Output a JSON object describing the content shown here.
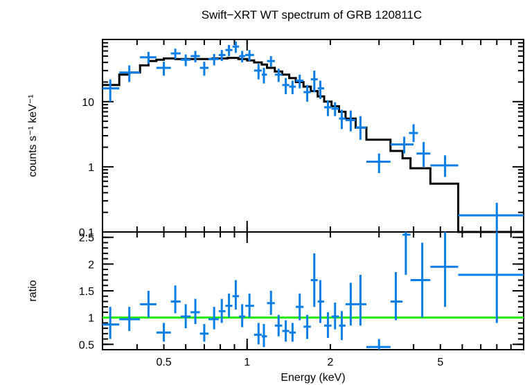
{
  "chart_data": [
    {
      "type": "scatter",
      "title": "Swift−XRT WT spectrum of GRB 120811C",
      "xlabel": "",
      "ylabel": "counts s⁻¹ keV⁻¹",
      "xscale": "log",
      "yscale": "log",
      "xlim": [
        0.3,
        10
      ],
      "ylim": [
        0.1,
        90
      ],
      "y_ticks": [
        "0.1",
        "1",
        "10"
      ],
      "colors": {
        "data": "#0a7de6",
        "model": "#000000"
      },
      "series": [
        {
          "kind": "data",
          "points": [
            {
              "x": 0.32,
              "xlo": 0.3,
              "xhi": 0.345,
              "y": 16,
              "ylo": 10,
              "yhi": 22
            },
            {
              "x": 0.375,
              "xlo": 0.345,
              "xhi": 0.41,
              "y": 28,
              "ylo": 20,
              "yhi": 36
            },
            {
              "x": 0.44,
              "xlo": 0.41,
              "xhi": 0.47,
              "y": 48,
              "ylo": 38,
              "yhi": 58
            },
            {
              "x": 0.5,
              "xlo": 0.47,
              "xhi": 0.53,
              "y": 33,
              "ylo": 25,
              "yhi": 41
            },
            {
              "x": 0.55,
              "xlo": 0.53,
              "xhi": 0.575,
              "y": 55,
              "ylo": 45,
              "yhi": 65
            },
            {
              "x": 0.6,
              "xlo": 0.575,
              "xhi": 0.625,
              "y": 44,
              "ylo": 35,
              "yhi": 53
            },
            {
              "x": 0.65,
              "xlo": 0.625,
              "xhi": 0.675,
              "y": 50,
              "ylo": 40,
              "yhi": 60
            },
            {
              "x": 0.7,
              "xlo": 0.675,
              "xhi": 0.725,
              "y": 33,
              "ylo": 25,
              "yhi": 41
            },
            {
              "x": 0.76,
              "xlo": 0.725,
              "xhi": 0.79,
              "y": 45,
              "ylo": 36,
              "yhi": 54
            },
            {
              "x": 0.81,
              "xlo": 0.79,
              "xhi": 0.835,
              "y": 52,
              "ylo": 42,
              "yhi": 62
            },
            {
              "x": 0.86,
              "xlo": 0.835,
              "xhi": 0.885,
              "y": 62,
              "ylo": 50,
              "yhi": 74
            },
            {
              "x": 0.91,
              "xlo": 0.885,
              "xhi": 0.935,
              "y": 70,
              "ylo": 56,
              "yhi": 84
            },
            {
              "x": 0.96,
              "xlo": 0.935,
              "xhi": 0.985,
              "y": 50,
              "ylo": 40,
              "yhi": 60
            },
            {
              "x": 1.02,
              "xlo": 0.985,
              "xhi": 1.06,
              "y": 52,
              "ylo": 42,
              "yhi": 62
            },
            {
              "x": 1.1,
              "xlo": 1.06,
              "xhi": 1.13,
              "y": 30,
              "ylo": 22,
              "yhi": 38
            },
            {
              "x": 1.15,
              "xlo": 1.13,
              "xhi": 1.18,
              "y": 26,
              "ylo": 19,
              "yhi": 33
            },
            {
              "x": 1.22,
              "xlo": 1.18,
              "xhi": 1.26,
              "y": 42,
              "ylo": 34,
              "yhi": 50
            },
            {
              "x": 1.3,
              "xlo": 1.26,
              "xhi": 1.34,
              "y": 26,
              "ylo": 20,
              "yhi": 32
            },
            {
              "x": 1.38,
              "xlo": 1.34,
              "xhi": 1.42,
              "y": 18,
              "ylo": 13,
              "yhi": 23
            },
            {
              "x": 1.46,
              "xlo": 1.42,
              "xhi": 1.5,
              "y": 17,
              "ylo": 13,
              "yhi": 21
            },
            {
              "x": 1.55,
              "xlo": 1.5,
              "xhi": 1.6,
              "y": 21,
              "ylo": 16,
              "yhi": 26
            },
            {
              "x": 1.65,
              "xlo": 1.6,
              "xhi": 1.7,
              "y": 14,
              "ylo": 10,
              "yhi": 18
            },
            {
              "x": 1.75,
              "xlo": 1.7,
              "xhi": 1.8,
              "y": 22,
              "ylo": 14,
              "yhi": 30
            },
            {
              "x": 1.84,
              "xlo": 1.8,
              "xhi": 1.9,
              "y": 16,
              "ylo": 11,
              "yhi": 21
            },
            {
              "x": 1.96,
              "xlo": 1.9,
              "xhi": 2.02,
              "y": 8.2,
              "ylo": 6,
              "yhi": 10.5
            },
            {
              "x": 2.08,
              "xlo": 2.02,
              "xhi": 2.15,
              "y": 7.8,
              "ylo": 6,
              "yhi": 9.8
            },
            {
              "x": 2.2,
              "xlo": 2.15,
              "xhi": 2.27,
              "y": 5.5,
              "ylo": 3.8,
              "yhi": 7.5
            },
            {
              "x": 2.37,
              "xlo": 2.27,
              "xhi": 2.47,
              "y": 5.2,
              "ylo": 3.5,
              "yhi": 7.3
            },
            {
              "x": 2.57,
              "xlo": 2.47,
              "xhi": 2.7,
              "y": 4.0,
              "ylo": 2.6,
              "yhi": 6.0
            },
            {
              "x": 3.0,
              "xlo": 2.7,
              "xhi": 3.3,
              "y": 1.2,
              "ylo": 0.8,
              "yhi": 1.6
            },
            {
              "x": 3.7,
              "xlo": 3.3,
              "xhi": 4.0,
              "y": 2.2,
              "ylo": 1.6,
              "yhi": 2.9
            },
            {
              "x": 4.0,
              "xlo": 3.85,
              "xhi": 4.15,
              "y": 3.3,
              "ylo": 2.4,
              "yhi": 4.5
            },
            {
              "x": 4.35,
              "xlo": 4.1,
              "xhi": 4.6,
              "y": 1.6,
              "ylo": 1.0,
              "yhi": 2.4
            },
            {
              "x": 5.2,
              "xlo": 4.6,
              "xhi": 5.8,
              "y": 1.05,
              "ylo": 0.7,
              "yhi": 1.5
            },
            {
              "x": 8.0,
              "xlo": 5.8,
              "xhi": 10,
              "y": 0.18,
              "ylo": 0.1,
              "yhi": 0.28
            }
          ]
        },
        {
          "kind": "model",
          "steps": [
            {
              "x0": 0.3,
              "x1": 0.345,
              "y": 18
            },
            {
              "x0": 0.345,
              "x1": 0.375,
              "y": 26
            },
            {
              "x0": 0.375,
              "x1": 0.41,
              "y": 28
            },
            {
              "x0": 0.41,
              "x1": 0.44,
              "y": 36
            },
            {
              "x0": 0.44,
              "x1": 0.47,
              "y": 42
            },
            {
              "x0": 0.47,
              "x1": 0.5,
              "y": 44
            },
            {
              "x0": 0.5,
              "x1": 0.55,
              "y": 46
            },
            {
              "x0": 0.55,
              "x1": 0.65,
              "y": 45
            },
            {
              "x0": 0.65,
              "x1": 0.75,
              "y": 45
            },
            {
              "x0": 0.75,
              "x1": 0.85,
              "y": 46
            },
            {
              "x0": 0.85,
              "x1": 0.93,
              "y": 47
            },
            {
              "x0": 0.93,
              "x1": 1.0,
              "y": 45
            },
            {
              "x0": 1.0,
              "x1": 1.06,
              "y": 43
            },
            {
              "x0": 1.06,
              "x1": 1.13,
              "y": 40
            },
            {
              "x0": 1.13,
              "x1": 1.18,
              "y": 37
            },
            {
              "x0": 1.18,
              "x1": 1.26,
              "y": 33
            },
            {
              "x0": 1.26,
              "x1": 1.34,
              "y": 29
            },
            {
              "x0": 1.34,
              "x1": 1.42,
              "y": 26
            },
            {
              "x0": 1.42,
              "x1": 1.5,
              "y": 23
            },
            {
              "x0": 1.5,
              "x1": 1.6,
              "y": 20
            },
            {
              "x0": 1.6,
              "x1": 1.7,
              "y": 17
            },
            {
              "x0": 1.7,
              "x1": 1.8,
              "y": 14.5
            },
            {
              "x0": 1.8,
              "x1": 1.9,
              "y": 12
            },
            {
              "x0": 1.9,
              "x1": 2.02,
              "y": 10
            },
            {
              "x0": 2.02,
              "x1": 2.15,
              "y": 8.5
            },
            {
              "x0": 2.15,
              "x1": 2.27,
              "y": 7
            },
            {
              "x0": 2.27,
              "x1": 2.47,
              "y": 5.5
            },
            {
              "x0": 2.47,
              "x1": 2.7,
              "y": 4.0
            },
            {
              "x0": 2.7,
              "x1": 3.3,
              "y": 2.6
            },
            {
              "x0": 3.3,
              "x1": 3.65,
              "y": 1.75
            },
            {
              "x0": 3.65,
              "x1": 3.9,
              "y": 1.35
            },
            {
              "x0": 3.9,
              "x1": 4.6,
              "y": 0.95
            },
            {
              "x0": 4.6,
              "x1": 5.8,
              "y": 0.55
            },
            {
              "x0": 5.8,
              "x1": 10,
              "y": 0.1
            }
          ]
        }
      ]
    },
    {
      "type": "scatter",
      "title": "",
      "xlabel": "Energy (keV)",
      "ylabel": "ratio",
      "xscale": "log",
      "yscale": "linear",
      "xlim": [
        0.3,
        10
      ],
      "ylim": [
        0.4,
        2.6
      ],
      "x_ticks": [
        "0.5",
        "1",
        "2",
        "5"
      ],
      "y_ticks": [
        "0.5",
        "1",
        "1.5",
        "2",
        "2.5"
      ],
      "reference_line": 1,
      "colors": {
        "data": "#0a7de6",
        "reference": "#22ee00"
      },
      "series": [
        {
          "kind": "ratio",
          "points": [
            {
              "x": 0.32,
              "xlo": 0.3,
              "xhi": 0.345,
              "y": 0.87,
              "ylo": 0.6,
              "yhi": 1.2
            },
            {
              "x": 0.375,
              "xlo": 0.345,
              "xhi": 0.41,
              "y": 0.97,
              "ylo": 0.75,
              "yhi": 1.2
            },
            {
              "x": 0.44,
              "xlo": 0.41,
              "xhi": 0.47,
              "y": 1.25,
              "ylo": 1.0,
              "yhi": 1.5
            },
            {
              "x": 0.5,
              "xlo": 0.47,
              "xhi": 0.53,
              "y": 0.72,
              "ylo": 0.55,
              "yhi": 0.9
            },
            {
              "x": 0.55,
              "xlo": 0.53,
              "xhi": 0.575,
              "y": 1.3,
              "ylo": 1.08,
              "yhi": 1.6
            },
            {
              "x": 0.6,
              "xlo": 0.575,
              "xhi": 0.625,
              "y": 1.02,
              "ylo": 0.8,
              "yhi": 1.25
            },
            {
              "x": 0.65,
              "xlo": 0.625,
              "xhi": 0.675,
              "y": 1.1,
              "ylo": 0.88,
              "yhi": 1.35
            },
            {
              "x": 0.7,
              "xlo": 0.675,
              "xhi": 0.725,
              "y": 0.7,
              "ylo": 0.55,
              "yhi": 0.88
            },
            {
              "x": 0.76,
              "xlo": 0.725,
              "xhi": 0.79,
              "y": 0.97,
              "ylo": 0.78,
              "yhi": 1.2
            },
            {
              "x": 0.81,
              "xlo": 0.79,
              "xhi": 0.835,
              "y": 1.12,
              "ylo": 0.9,
              "yhi": 1.35
            },
            {
              "x": 0.86,
              "xlo": 0.835,
              "xhi": 0.885,
              "y": 1.22,
              "ylo": 1.0,
              "yhi": 1.45
            },
            {
              "x": 0.91,
              "xlo": 0.885,
              "xhi": 0.935,
              "y": 1.4,
              "ylo": 1.15,
              "yhi": 1.7
            },
            {
              "x": 0.96,
              "xlo": 0.935,
              "xhi": 0.985,
              "y": 1.02,
              "ylo": 0.82,
              "yhi": 1.25
            },
            {
              "x": 1.02,
              "xlo": 0.985,
              "xhi": 1.06,
              "y": 1.22,
              "ylo": 1.0,
              "yhi": 1.45
            },
            {
              "x": 1.1,
              "xlo": 1.06,
              "xhi": 1.13,
              "y": 0.68,
              "ylo": 0.5,
              "yhi": 0.9
            },
            {
              "x": 1.15,
              "xlo": 1.13,
              "xhi": 1.18,
              "y": 0.65,
              "ylo": 0.45,
              "yhi": 0.88
            },
            {
              "x": 1.22,
              "xlo": 1.18,
              "xhi": 1.26,
              "y": 1.27,
              "ylo": 1.05,
              "yhi": 1.5
            },
            {
              "x": 1.3,
              "xlo": 1.26,
              "xhi": 1.34,
              "y": 0.85,
              "ylo": 0.65,
              "yhi": 1.05
            },
            {
              "x": 1.38,
              "xlo": 1.34,
              "xhi": 1.42,
              "y": 0.75,
              "ylo": 0.55,
              "yhi": 0.95
            },
            {
              "x": 1.46,
              "xlo": 1.42,
              "xhi": 1.5,
              "y": 0.72,
              "ylo": 0.55,
              "yhi": 0.9
            },
            {
              "x": 1.55,
              "xlo": 1.5,
              "xhi": 1.6,
              "y": 1.2,
              "ylo": 0.95,
              "yhi": 1.45
            },
            {
              "x": 1.65,
              "xlo": 1.6,
              "xhi": 1.7,
              "y": 0.83,
              "ylo": 0.6,
              "yhi": 1.05
            },
            {
              "x": 1.75,
              "xlo": 1.7,
              "xhi": 1.8,
              "y": 1.7,
              "ylo": 1.2,
              "yhi": 2.2
            },
            {
              "x": 1.84,
              "xlo": 1.8,
              "xhi": 1.9,
              "y": 1.3,
              "ylo": 0.9,
              "yhi": 1.7
            },
            {
              "x": 1.96,
              "xlo": 1.9,
              "xhi": 2.02,
              "y": 0.85,
              "ylo": 0.62,
              "yhi": 1.1
            },
            {
              "x": 2.08,
              "xlo": 2.02,
              "xhi": 2.15,
              "y": 1.02,
              "ylo": 0.78,
              "yhi": 1.28
            },
            {
              "x": 2.2,
              "xlo": 2.15,
              "xhi": 2.27,
              "y": 0.85,
              "ylo": 0.58,
              "yhi": 1.12
            },
            {
              "x": 2.37,
              "xlo": 2.27,
              "xhi": 2.47,
              "y": 1.25,
              "ylo": 0.85,
              "yhi": 1.65
            },
            {
              "x": 2.57,
              "xlo": 2.47,
              "xhi": 2.7,
              "y": 1.25,
              "ylo": 0.85,
              "yhi": 1.8
            },
            {
              "x": 3.0,
              "xlo": 2.7,
              "xhi": 3.3,
              "y": 0.45,
              "ylo": 0.4,
              "yhi": 0.6
            },
            {
              "x": 3.45,
              "xlo": 3.3,
              "xhi": 3.65,
              "y": 1.3,
              "ylo": 0.95,
              "yhi": 1.85
            },
            {
              "x": 3.75,
              "xlo": 3.65,
              "xhi": 3.9,
              "y": 2.55,
              "ylo": 1.8,
              "yhi": 2.6
            },
            {
              "x": 4.3,
              "xlo": 3.9,
              "xhi": 4.6,
              "y": 1.7,
              "ylo": 1.0,
              "yhi": 2.4
            },
            {
              "x": 5.2,
              "xlo": 4.6,
              "xhi": 5.8,
              "y": 1.95,
              "ylo": 1.2,
              "yhi": 2.6
            },
            {
              "x": 8.0,
              "xlo": 5.8,
              "xhi": 10,
              "y": 1.8,
              "ylo": 0.9,
              "yhi": 2.6
            }
          ]
        }
      ]
    }
  ]
}
